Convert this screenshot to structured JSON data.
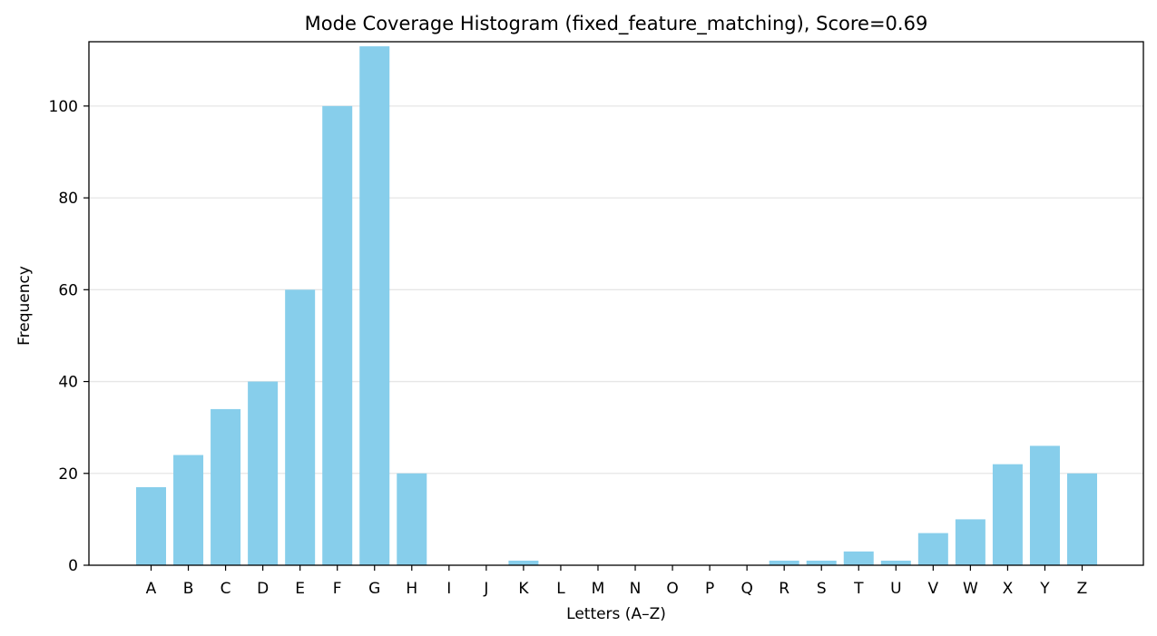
{
  "chart_data": {
    "type": "bar",
    "title": "Mode Coverage Histogram (fixed_feature_matching), Score=0.69",
    "xlabel": "Letters (A–Z)",
    "ylabel": "Frequency",
    "categories": [
      "A",
      "B",
      "C",
      "D",
      "E",
      "F",
      "G",
      "H",
      "I",
      "J",
      "K",
      "L",
      "M",
      "N",
      "O",
      "P",
      "Q",
      "R",
      "S",
      "T",
      "U",
      "V",
      "W",
      "X",
      "Y",
      "Z"
    ],
    "values": [
      17,
      24,
      34,
      40,
      60,
      100,
      113,
      20,
      0,
      0,
      1,
      0,
      0,
      0,
      0,
      0,
      0,
      1,
      1,
      3,
      1,
      7,
      10,
      22,
      26,
      20
    ],
    "ylim": [
      0,
      114
    ],
    "yticks": [
      0,
      20,
      40,
      60,
      80,
      100
    ],
    "grid": "y",
    "bar_color": "#87ceeb"
  }
}
